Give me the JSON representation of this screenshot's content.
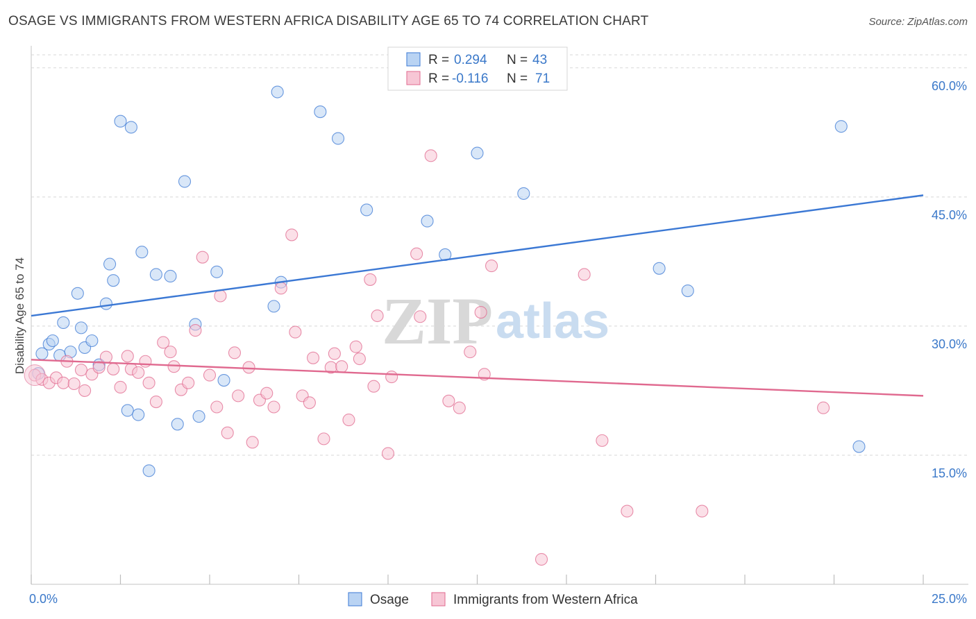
{
  "title": "OSAGE VS IMMIGRANTS FROM WESTERN AFRICA DISABILITY AGE 65 TO 74 CORRELATION CHART",
  "source": "Source: ZipAtlas.com",
  "watermark": {
    "zip": "ZIP",
    "atlas": "atlas"
  },
  "colors": {
    "blue": "#3b78d4",
    "blue_fill": "#b9d3f3",
    "pink": "#e0698f",
    "pink_fill": "#f7c6d5",
    "tick_blue": "#3a78c9",
    "grid": "#d7d7d7"
  },
  "legend_top": {
    "rows": [
      {
        "r_label": "R =",
        "r_value": "0.294",
        "n_label": "N =",
        "n_value": "43"
      },
      {
        "r_label": "R =",
        "r_value": "-0.116",
        "n_label": "N =",
        "n_value": "71"
      }
    ]
  },
  "legend_bottom": {
    "items": [
      "Osage",
      "Immigrants from Western Africa"
    ]
  },
  "chart_data": {
    "type": "scatter",
    "title": "OSAGE VS IMMIGRANTS FROM WESTERN AFRICA DISABILITY AGE 65 TO 74 CORRELATION CHART",
    "xlabel": "",
    "ylabel": "Disability Age 65 to 74",
    "xlim": [
      0,
      25
    ],
    "ylim": [
      0,
      62
    ],
    "x_tick_labels": [
      {
        "v": 0,
        "label": "0.0%"
      },
      {
        "v": 25,
        "label": "25.0%"
      }
    ],
    "x_tick_marks": [
      0,
      2.5,
      5,
      7.5,
      10,
      12.5,
      15,
      17.5,
      20,
      22.5,
      25
    ],
    "y_ticks": [
      {
        "v": 15,
        "label": "15.0%"
      },
      {
        "v": 30,
        "label": "30.0%"
      },
      {
        "v": 45,
        "label": "45.0%"
      },
      {
        "v": 60,
        "label": "60.0%"
      }
    ],
    "grid": true,
    "series": [
      {
        "name": "Osage",
        "color": "#3b78d4",
        "fill": "#b9d3f3",
        "trend": [
          {
            "x": 0,
            "y": 31.2
          },
          {
            "x": 25,
            "y": 45.2
          }
        ],
        "points": [
          [
            0.2,
            24.5
          ],
          [
            0.3,
            26.8
          ],
          [
            0.5,
            27.9
          ],
          [
            0.6,
            28.3
          ],
          [
            0.8,
            26.6
          ],
          [
            0.9,
            30.4
          ],
          [
            1.1,
            27.0
          ],
          [
            1.3,
            33.8
          ],
          [
            1.4,
            29.8
          ],
          [
            1.5,
            27.5
          ],
          [
            1.7,
            28.3
          ],
          [
            1.9,
            25.5
          ],
          [
            2.1,
            32.6
          ],
          [
            2.2,
            37.2
          ],
          [
            2.3,
            35.3
          ],
          [
            2.5,
            53.8
          ],
          [
            2.7,
            20.2
          ],
          [
            2.8,
            53.1
          ],
          [
            3.0,
            19.7
          ],
          [
            3.1,
            38.6
          ],
          [
            3.3,
            13.2
          ],
          [
            3.5,
            36.0
          ],
          [
            3.9,
            35.8
          ],
          [
            4.1,
            18.6
          ],
          [
            4.3,
            46.8
          ],
          [
            4.6,
            30.2
          ],
          [
            4.7,
            19.5
          ],
          [
            5.2,
            36.3
          ],
          [
            5.4,
            23.7
          ],
          [
            6.8,
            32.3
          ],
          [
            6.9,
            57.2
          ],
          [
            7.0,
            35.1
          ],
          [
            8.1,
            54.9
          ],
          [
            8.6,
            51.8
          ],
          [
            9.4,
            43.5
          ],
          [
            11.1,
            42.2
          ],
          [
            11.6,
            38.3
          ],
          [
            12.5,
            50.1
          ],
          [
            13.8,
            45.4
          ],
          [
            17.6,
            36.7
          ],
          [
            18.4,
            34.1
          ],
          [
            22.7,
            53.2
          ],
          [
            23.2,
            16.0
          ]
        ]
      },
      {
        "name": "Immigrants from Western Africa",
        "color": "#e0698f",
        "fill": "#f7c6d5",
        "trend": [
          {
            "x": 0,
            "y": 26.1
          },
          {
            "x": 25,
            "y": 21.9
          }
        ],
        "points": [
          [
            0.1,
            24.3
          ],
          [
            0.3,
            23.8
          ],
          [
            0.5,
            23.4
          ],
          [
            0.7,
            24.0
          ],
          [
            0.9,
            23.4
          ],
          [
            1.0,
            25.9
          ],
          [
            1.2,
            23.3
          ],
          [
            1.4,
            24.9
          ],
          [
            1.5,
            22.5
          ],
          [
            1.7,
            24.4
          ],
          [
            1.9,
            25.2
          ],
          [
            2.1,
            26.4
          ],
          [
            2.3,
            25.0
          ],
          [
            2.5,
            22.9
          ],
          [
            2.7,
            26.5
          ],
          [
            2.8,
            25.0
          ],
          [
            3.0,
            24.6
          ],
          [
            3.2,
            25.9
          ],
          [
            3.3,
            23.4
          ],
          [
            3.5,
            21.2
          ],
          [
            3.7,
            28.1
          ],
          [
            3.9,
            27.0
          ],
          [
            4.0,
            25.3
          ],
          [
            4.2,
            22.6
          ],
          [
            4.4,
            23.4
          ],
          [
            4.6,
            29.5
          ],
          [
            4.8,
            38.0
          ],
          [
            5.0,
            24.3
          ],
          [
            5.2,
            20.6
          ],
          [
            5.3,
            33.5
          ],
          [
            5.5,
            17.6
          ],
          [
            5.7,
            26.9
          ],
          [
            5.8,
            21.9
          ],
          [
            6.1,
            25.2
          ],
          [
            6.2,
            16.5
          ],
          [
            6.4,
            21.4
          ],
          [
            6.6,
            22.2
          ],
          [
            6.8,
            20.6
          ],
          [
            7.0,
            34.4
          ],
          [
            7.3,
            40.6
          ],
          [
            7.4,
            29.3
          ],
          [
            7.6,
            21.9
          ],
          [
            7.8,
            21.1
          ],
          [
            7.9,
            26.3
          ],
          [
            8.2,
            16.9
          ],
          [
            8.4,
            25.2
          ],
          [
            8.5,
            26.8
          ],
          [
            8.7,
            25.3
          ],
          [
            8.9,
            19.1
          ],
          [
            9.1,
            27.6
          ],
          [
            9.2,
            26.2
          ],
          [
            9.5,
            35.4
          ],
          [
            9.6,
            23.0
          ],
          [
            9.7,
            31.2
          ],
          [
            10.0,
            15.2
          ],
          [
            10.1,
            24.1
          ],
          [
            10.8,
            38.4
          ],
          [
            10.9,
            31.1
          ],
          [
            11.2,
            49.8
          ],
          [
            11.7,
            21.3
          ],
          [
            12.0,
            20.5
          ],
          [
            12.3,
            27.0
          ],
          [
            12.6,
            31.6
          ],
          [
            12.7,
            24.4
          ],
          [
            12.9,
            37.0
          ],
          [
            14.3,
            2.9
          ],
          [
            15.5,
            36.0
          ],
          [
            16.0,
            16.7
          ],
          [
            16.7,
            8.5
          ],
          [
            18.8,
            8.5
          ],
          [
            22.2,
            20.5
          ]
        ]
      }
    ]
  }
}
